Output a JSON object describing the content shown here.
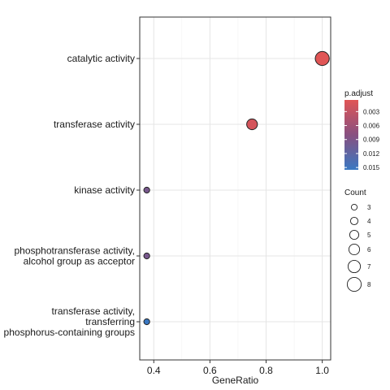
{
  "chart_data": {
    "type": "scatter",
    "title": "",
    "xlabel": "GeneRatio",
    "ylabel": "",
    "xlim": [
      0.35,
      1.03
    ],
    "xticks": [
      0.4,
      0.6,
      0.8,
      1.0
    ],
    "xtick_labels": [
      "0.4",
      "0.6",
      "0.8",
      "1.0"
    ],
    "grid": true,
    "categories": [
      [
        "catalytic activity"
      ],
      [
        "transferase activity"
      ],
      [
        "kinase activity"
      ],
      [
        "phosphotransferase activity,",
        "alcohol group as acceptor"
      ],
      [
        "transferase activity,",
        "transferring",
        "phosphorus-containing groups"
      ]
    ],
    "points": [
      {
        "gene_ratio": 1.0,
        "count": 8,
        "p_adjust": 0.0005
      },
      {
        "gene_ratio": 0.75,
        "count": 6,
        "p_adjust": 0.0015
      },
      {
        "gene_ratio": 0.375,
        "count": 3,
        "p_adjust": 0.0095
      },
      {
        "gene_ratio": 0.375,
        "count": 3,
        "p_adjust": 0.0095
      },
      {
        "gene_ratio": 0.375,
        "count": 3,
        "p_adjust": 0.0155
      }
    ],
    "color_legend": {
      "title": "p.adjust",
      "ticks": [
        "0.003",
        "0.006",
        "0.009",
        "0.012",
        "0.015"
      ],
      "tick_values": [
        0.003,
        0.006,
        0.009,
        0.012,
        0.015
      ],
      "range": [
        0.0005,
        0.0155
      ],
      "low_color": "#e05555",
      "high_color": "#3a78c2"
    },
    "size_legend": {
      "title": "Count",
      "values": [
        3,
        4,
        5,
        6,
        7,
        8
      ],
      "labels": [
        "3",
        "4",
        "5",
        "6",
        "7",
        "8"
      ]
    },
    "legend_position": "right"
  }
}
